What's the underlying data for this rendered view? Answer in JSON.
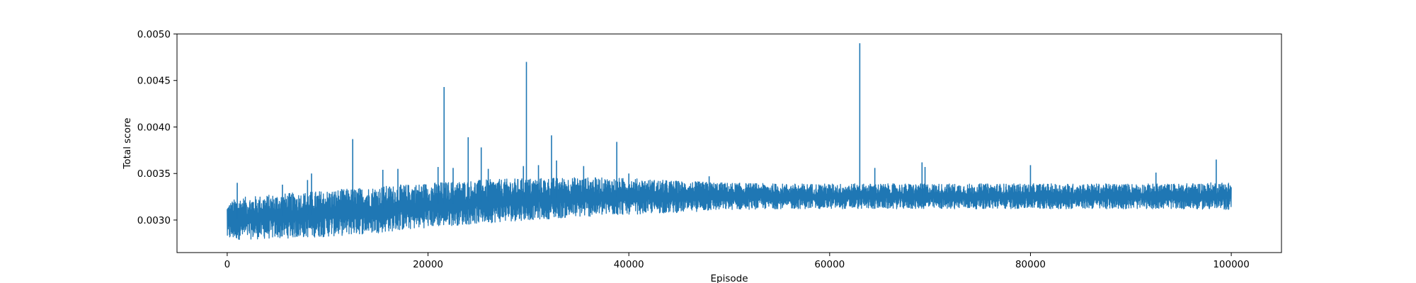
{
  "chart_data": {
    "type": "line",
    "title": "",
    "xlabel": "Episode",
    "ylabel": "Total score",
    "xlim": [
      -5000,
      105000
    ],
    "ylim": [
      0.00265,
      0.005
    ],
    "grid": false,
    "legend": "none",
    "color": "#1f77b4",
    "x_ticks": [
      0,
      20000,
      40000,
      60000,
      80000,
      100000
    ],
    "x_tick_labels": [
      "0",
      "20000",
      "40000",
      "60000",
      "80000",
      "100000"
    ],
    "y_ticks": [
      0.003,
      0.0035,
      0.004,
      0.0045,
      0.005
    ],
    "y_tick_labels": [
      "0.0030",
      "0.0035",
      "0.0040",
      "0.0045",
      "0.0050"
    ],
    "series": [
      {
        "envelope_x": [
          0,
          1000,
          5000,
          10000,
          15000,
          20000,
          25000,
          30000,
          35000,
          40000,
          45000,
          50000,
          55000,
          60000,
          65000,
          70000,
          75000,
          80000,
          85000,
          90000,
          95000,
          100000
        ],
        "envelope_lower": [
          0.00278,
          0.00279,
          0.0028,
          0.00282,
          0.00286,
          0.00292,
          0.00296,
          0.003,
          0.00303,
          0.00306,
          0.00308,
          0.00311,
          0.00312,
          0.00312,
          0.00312,
          0.00312,
          0.00312,
          0.00312,
          0.00312,
          0.00312,
          0.00312,
          0.00311
        ],
        "envelope_upper": [
          0.00318,
          0.00324,
          0.00328,
          0.00332,
          0.00336,
          0.0034,
          0.00343,
          0.00345,
          0.00346,
          0.00345,
          0.00342,
          0.0034,
          0.00339,
          0.00339,
          0.00339,
          0.00339,
          0.00339,
          0.00339,
          0.00339,
          0.00339,
          0.00339,
          0.00341
        ],
        "spikes": [
          [
            1000,
            0.0034
          ],
          [
            5500,
            0.00338
          ],
          [
            8000,
            0.00343
          ],
          [
            8400,
            0.0035
          ],
          [
            12500,
            0.00387
          ],
          [
            15500,
            0.00354
          ],
          [
            17000,
            0.00355
          ],
          [
            21000,
            0.00357
          ],
          [
            21600,
            0.00443
          ],
          [
            22500,
            0.00356
          ],
          [
            24000,
            0.00389
          ],
          [
            25300,
            0.00378
          ],
          [
            26000,
            0.00355
          ],
          [
            29500,
            0.00358
          ],
          [
            29800,
            0.0047
          ],
          [
            31000,
            0.00359
          ],
          [
            32300,
            0.00391
          ],
          [
            32800,
            0.00364
          ],
          [
            35500,
            0.00358
          ],
          [
            38800,
            0.00384
          ],
          [
            40000,
            0.0035
          ],
          [
            48000,
            0.00347
          ],
          [
            63000,
            0.0049
          ],
          [
            64500,
            0.00356
          ],
          [
            69200,
            0.00362
          ],
          [
            69500,
            0.00357
          ],
          [
            80000,
            0.00359
          ],
          [
            92500,
            0.00351
          ],
          [
            98500,
            0.00365
          ]
        ]
      }
    ]
  }
}
